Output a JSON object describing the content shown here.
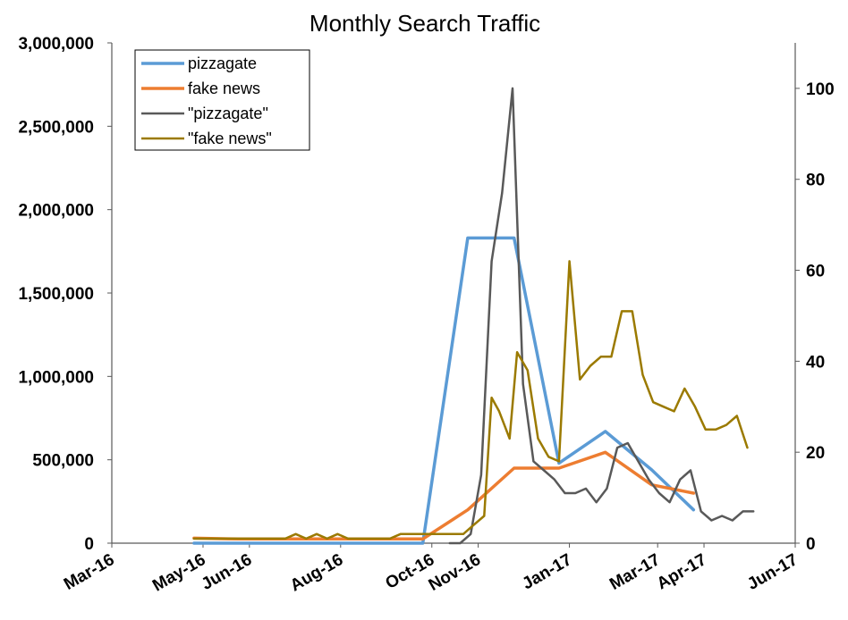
{
  "chart_data": {
    "type": "line",
    "title": "Monthly Search Traffic",
    "xlabel": "",
    "ylabel": "",
    "y2label": "",
    "grid": false,
    "legend_position": "top-left",
    "x_range": [
      "2016-03-01",
      "2017-06-01"
    ],
    "ylim": [
      0,
      3000000
    ],
    "y2lim": [
      0,
      110
    ],
    "x_ticks": [
      {
        "date": "2016-03-01",
        "label": "Mar-16"
      },
      {
        "date": "2016-05-01",
        "label": "May-16"
      },
      {
        "date": "2016-06-01",
        "label": "Jun-16"
      },
      {
        "date": "2016-08-01",
        "label": "Aug-16"
      },
      {
        "date": "2016-10-01",
        "label": "Oct-16"
      },
      {
        "date": "2016-11-01",
        "label": "Nov-16"
      },
      {
        "date": "2017-01-01",
        "label": "Jan-17"
      },
      {
        "date": "2017-03-01",
        "label": "Mar-17"
      },
      {
        "date": "2017-04-01",
        "label": "Apr-17"
      },
      {
        "date": "2017-06-01",
        "label": "Jun-17"
      }
    ],
    "y_ticks": [
      {
        "value": 0,
        "label": "0"
      },
      {
        "value": 500000,
        "label": "500,000"
      },
      {
        "value": 1000000,
        "label": "1,000,000"
      },
      {
        "value": 1500000,
        "label": "1,500,000"
      },
      {
        "value": 2000000,
        "label": "2,000,000"
      },
      {
        "value": 2500000,
        "label": "2,500,000"
      },
      {
        "value": 3000000,
        "label": "3,000,000"
      }
    ],
    "y2_ticks": [
      {
        "value": 0,
        "label": "0"
      },
      {
        "value": 20,
        "label": "20"
      },
      {
        "value": 40,
        "label": "40"
      },
      {
        "value": 60,
        "label": "60"
      },
      {
        "value": 80,
        "label": "80"
      },
      {
        "value": 100,
        "label": "100"
      }
    ],
    "series": [
      {
        "name": "pizzagate",
        "axis": "left",
        "color": "#5b9bd5",
        "width": 3.5,
        "points": [
          [
            "2016-04-25",
            0
          ],
          [
            "2016-05-25",
            0
          ],
          [
            "2016-06-25",
            0
          ],
          [
            "2016-07-25",
            0
          ],
          [
            "2016-08-25",
            0
          ],
          [
            "2016-09-25",
            0
          ],
          [
            "2016-10-25",
            1830000
          ],
          [
            "2016-11-25",
            1830000
          ],
          [
            "2016-12-25",
            480000
          ],
          [
            "2017-01-25",
            670000
          ],
          [
            "2017-02-25",
            440000
          ],
          [
            "2017-03-25",
            200000
          ]
        ]
      },
      {
        "name": "fake news",
        "axis": "left",
        "color": "#ed7d31",
        "width": 3.5,
        "points": [
          [
            "2016-04-25",
            30000
          ],
          [
            "2016-05-25",
            25000
          ],
          [
            "2016-06-25",
            25000
          ],
          [
            "2016-07-25",
            25000
          ],
          [
            "2016-08-25",
            25000
          ],
          [
            "2016-09-25",
            25000
          ],
          [
            "2016-10-25",
            200000
          ],
          [
            "2016-11-25",
            450000
          ],
          [
            "2016-12-25",
            450000
          ],
          [
            "2017-01-25",
            545000
          ],
          [
            "2017-02-25",
            350000
          ],
          [
            "2017-03-25",
            300000
          ]
        ]
      },
      {
        "name": "\"pizzagate\"",
        "axis": "right",
        "color": "#595959",
        "width": 2.5,
        "points": [
          [
            "2016-10-13",
            0
          ],
          [
            "2016-10-20",
            0
          ],
          [
            "2016-10-27",
            2
          ],
          [
            "2016-11-03",
            15
          ],
          [
            "2016-11-10",
            62
          ],
          [
            "2016-11-17",
            77
          ],
          [
            "2016-11-24",
            100
          ],
          [
            "2016-12-01",
            35
          ],
          [
            "2016-12-08",
            18
          ],
          [
            "2016-12-15",
            16
          ],
          [
            "2016-12-22",
            14
          ],
          [
            "2016-12-29",
            11
          ],
          [
            "2017-01-05",
            11
          ],
          [
            "2017-01-12",
            12
          ],
          [
            "2017-01-19",
            9
          ],
          [
            "2017-01-26",
            12
          ],
          [
            "2017-02-02",
            21
          ],
          [
            "2017-02-09",
            22
          ],
          [
            "2017-02-16",
            18
          ],
          [
            "2017-02-23",
            14
          ],
          [
            "2017-03-02",
            11
          ],
          [
            "2017-03-09",
            9
          ],
          [
            "2017-03-16",
            14
          ],
          [
            "2017-03-23",
            16
          ],
          [
            "2017-03-30",
            7
          ],
          [
            "2017-04-06",
            5
          ],
          [
            "2017-04-13",
            6
          ],
          [
            "2017-04-20",
            5
          ],
          [
            "2017-04-27",
            7
          ],
          [
            "2017-05-04",
            7
          ]
        ]
      },
      {
        "name": "\"fake news\"",
        "axis": "right",
        "color": "#9b7a00",
        "width": 2.5,
        "points": [
          [
            "2016-04-25",
            1
          ],
          [
            "2016-05-10",
            1
          ],
          [
            "2016-05-25",
            1
          ],
          [
            "2016-06-10",
            1
          ],
          [
            "2016-06-25",
            1
          ],
          [
            "2016-07-02",
            2
          ],
          [
            "2016-07-09",
            1
          ],
          [
            "2016-07-16",
            2
          ],
          [
            "2016-07-23",
            1
          ],
          [
            "2016-07-30",
            2
          ],
          [
            "2016-08-06",
            1
          ],
          [
            "2016-08-20",
            1
          ],
          [
            "2016-09-03",
            1
          ],
          [
            "2016-09-10",
            2
          ],
          [
            "2016-09-24",
            2
          ],
          [
            "2016-10-08",
            2
          ],
          [
            "2016-10-22",
            2
          ],
          [
            "2016-10-29",
            4
          ],
          [
            "2016-11-05",
            6
          ],
          [
            "2016-11-10",
            32
          ],
          [
            "2016-11-15",
            29
          ],
          [
            "2016-11-22",
            23
          ],
          [
            "2016-11-27",
            42
          ],
          [
            "2016-12-04",
            38
          ],
          [
            "2016-12-11",
            23
          ],
          [
            "2016-12-18",
            19
          ],
          [
            "2016-12-25",
            18
          ],
          [
            "2017-01-01",
            62
          ],
          [
            "2017-01-08",
            36
          ],
          [
            "2017-01-15",
            39
          ],
          [
            "2017-01-22",
            41
          ],
          [
            "2017-01-29",
            41
          ],
          [
            "2017-02-05",
            51
          ],
          [
            "2017-02-12",
            51
          ],
          [
            "2017-02-19",
            37
          ],
          [
            "2017-02-26",
            31
          ],
          [
            "2017-03-05",
            30
          ],
          [
            "2017-03-12",
            29
          ],
          [
            "2017-03-19",
            34
          ],
          [
            "2017-03-26",
            30
          ],
          [
            "2017-04-02",
            25
          ],
          [
            "2017-04-09",
            25
          ],
          [
            "2017-04-16",
            26
          ],
          [
            "2017-04-23",
            28
          ],
          [
            "2017-04-30",
            21
          ]
        ]
      }
    ]
  }
}
